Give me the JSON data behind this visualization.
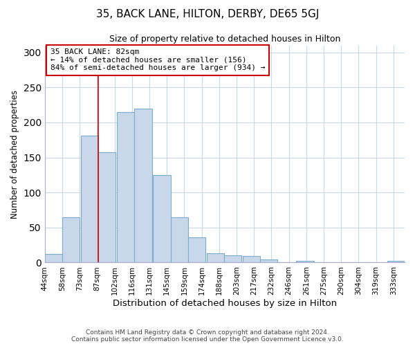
{
  "title": "35, BACK LANE, HILTON, DERBY, DE65 5GJ",
  "subtitle": "Size of property relative to detached houses in Hilton",
  "xlabel": "Distribution of detached houses by size in Hilton",
  "ylabel": "Number of detached properties",
  "bar_left_edges": [
    44,
    58,
    73,
    87,
    102,
    116,
    131,
    145,
    159,
    174,
    188,
    203,
    217,
    232,
    246,
    261,
    275,
    290,
    304,
    319
  ],
  "bar_heights": [
    12,
    65,
    181,
    157,
    215,
    220,
    125,
    65,
    36,
    13,
    10,
    9,
    4,
    0,
    2,
    0,
    0,
    0,
    0,
    2
  ],
  "bin_width": 14,
  "bar_color": "#c8d8ea",
  "bar_edge_color": "#7aaacc",
  "background_color": "#ffffff",
  "grid_color": "#c8d8ea",
  "marker_x": 87,
  "marker_color": "#cc0000",
  "annotation_text": "35 BACK LANE: 82sqm\n← 14% of detached houses are smaller (156)\n84% of semi-detached houses are larger (934) →",
  "annotation_box_color": "#ffffff",
  "annotation_box_edge_color": "#cc0000",
  "ylim": [
    0,
    310
  ],
  "xlim_left": 44,
  "xlim_right": 333,
  "tick_labels": [
    "44sqm",
    "58sqm",
    "73sqm",
    "87sqm",
    "102sqm",
    "116sqm",
    "131sqm",
    "145sqm",
    "159sqm",
    "174sqm",
    "188sqm",
    "203sqm",
    "217sqm",
    "232sqm",
    "246sqm",
    "261sqm",
    "275sqm",
    "290sqm",
    "304sqm",
    "319sqm",
    "333sqm"
  ],
  "footer_line1": "Contains HM Land Registry data © Crown copyright and database right 2024.",
  "footer_line2": "Contains public sector information licensed under the Open Government Licence v3.0."
}
